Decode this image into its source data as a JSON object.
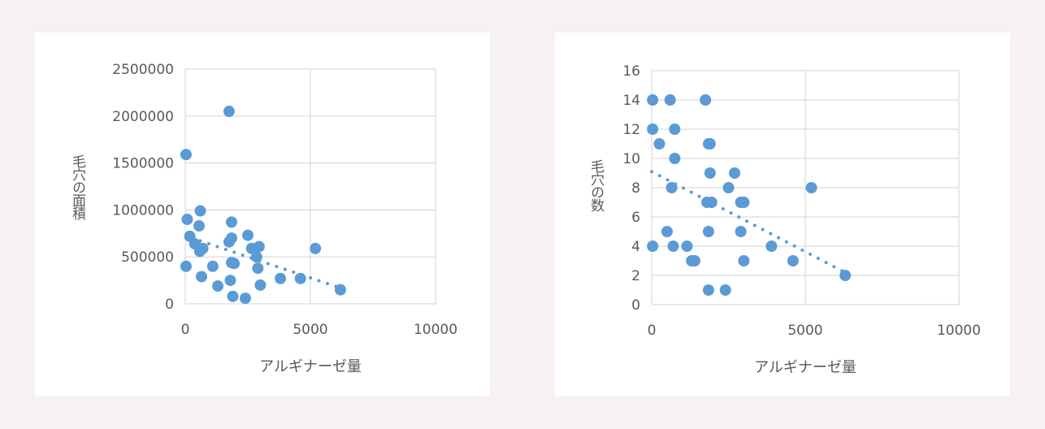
{
  "chart_data": [
    {
      "type": "scatter",
      "title": "",
      "xlabel": "アルギナーゼ量",
      "ylabel": "毛穴の面積",
      "xlim": [
        0,
        10000
      ],
      "ylim": [
        0,
        2500000
      ],
      "xticks": [
        "0",
        "5000",
        "10000"
      ],
      "yticks": [
        "0",
        "500000",
        "1000000",
        "1500000",
        "2000000",
        "2500000"
      ],
      "grid": true,
      "trendline": {
        "type": "linear",
        "style": "dotted",
        "x": [
          600,
          6200
        ],
        "y": [
          670000,
          170000
        ]
      },
      "color": "#5b9bd5",
      "points": [
        [
          30,
          1590000
        ],
        [
          30,
          400000
        ],
        [
          80,
          900000
        ],
        [
          180,
          720000
        ],
        [
          380,
          640000
        ],
        [
          550,
          830000
        ],
        [
          580,
          560000
        ],
        [
          600,
          990000
        ],
        [
          650,
          290000
        ],
        [
          700,
          590000
        ],
        [
          1100,
          400000
        ],
        [
          1300,
          190000
        ],
        [
          1750,
          2050000
        ],
        [
          1750,
          660000
        ],
        [
          1800,
          250000
        ],
        [
          1850,
          870000
        ],
        [
          1850,
          700000
        ],
        [
          1850,
          440000
        ],
        [
          1900,
          80000
        ],
        [
          1950,
          430000
        ],
        [
          2400,
          60000
        ],
        [
          2500,
          730000
        ],
        [
          2650,
          590000
        ],
        [
          2850,
          500000
        ],
        [
          2900,
          380000
        ],
        [
          2950,
          610000
        ],
        [
          3000,
          200000
        ],
        [
          3800,
          270000
        ],
        [
          4600,
          270000
        ],
        [
          5200,
          590000
        ],
        [
          6200,
          150000
        ]
      ]
    },
    {
      "type": "scatter",
      "title": "",
      "xlabel": "アルギナーゼ量",
      "ylabel": "毛穴の数",
      "xlim": [
        0,
        10000
      ],
      "ylim": [
        0,
        16
      ],
      "xticks": [
        "0",
        "5000",
        "10000"
      ],
      "yticks": [
        "0",
        "2",
        "4",
        "6",
        "8",
        "10",
        "12",
        "14",
        "16"
      ],
      "grid": true,
      "trendline": {
        "type": "linear",
        "style": "dotted",
        "x": [
          0,
          6300
        ],
        "y": [
          9.1,
          2.2
        ]
      },
      "color": "#5b9bd5",
      "points": [
        [
          30,
          14
        ],
        [
          30,
          12
        ],
        [
          30,
          4
        ],
        [
          250,
          11
        ],
        [
          500,
          5
        ],
        [
          600,
          14
        ],
        [
          650,
          8
        ],
        [
          700,
          4
        ],
        [
          750,
          12
        ],
        [
          750,
          10
        ],
        [
          1150,
          4
        ],
        [
          1300,
          3
        ],
        [
          1400,
          3
        ],
        [
          1750,
          14
        ],
        [
          1800,
          7
        ],
        [
          1850,
          11
        ],
        [
          1850,
          5
        ],
        [
          1900,
          11
        ],
        [
          1900,
          9
        ],
        [
          1950,
          7
        ],
        [
          1850,
          1
        ],
        [
          2400,
          1
        ],
        [
          2500,
          8
        ],
        [
          2700,
          9
        ],
        [
          2900,
          7
        ],
        [
          2900,
          5
        ],
        [
          3000,
          7
        ],
        [
          3000,
          3
        ],
        [
          3900,
          4
        ],
        [
          4600,
          3
        ],
        [
          5200,
          8
        ],
        [
          6300,
          2
        ]
      ]
    }
  ]
}
